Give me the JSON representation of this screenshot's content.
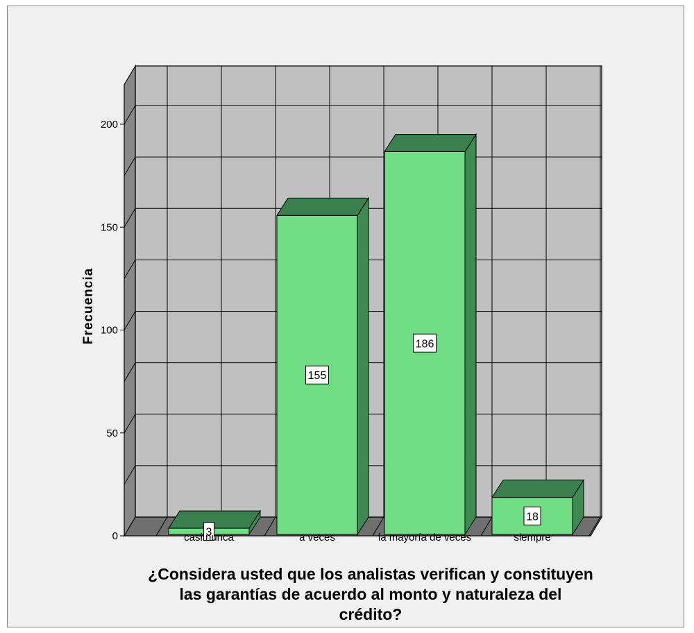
{
  "chart_data": {
    "type": "bar",
    "categories": [
      "casi nunca",
      "a veces",
      "la mayoría de veces",
      "siempre"
    ],
    "values": [
      3,
      155,
      186,
      18
    ],
    "data_labels": [
      "3",
      "155",
      "186",
      "18"
    ],
    "ylabel": "Frecuencia",
    "xlabel_lines": [
      "¿Considera usted que los analistas verifican y constituyen",
      "las garantías de acuerdo al monto y naturaleza del",
      "crédito?"
    ],
    "ylim": [
      0,
      200
    ],
    "yticks": [
      "0",
      "50",
      "100",
      "150",
      "200"
    ],
    "grid": true,
    "style": "3d",
    "colors": {
      "bar_front": "#70dc84",
      "bar_top": "#3a7f4e",
      "bar_side": "#3e8a52",
      "plot_back": "#c0c0c0",
      "plot_floor": "#6f6f6f",
      "plot_wall": "#888888",
      "frame_bg": "#f0f0f0"
    }
  }
}
